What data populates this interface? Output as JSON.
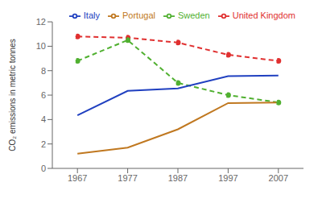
{
  "chart_data": {
    "type": "line",
    "ylabel": "CO₂ emissions in metric tonnes",
    "x": [
      1967,
      1977,
      1987,
      1997,
      2007
    ],
    "series": [
      {
        "name": "United Kingdom",
        "color": "#e03030",
        "line_style": "dashed",
        "marker": "point",
        "values": [
          10.8,
          10.7,
          10.3,
          9.3,
          8.8
        ]
      },
      {
        "name": "Sweden",
        "color": "#50b030",
        "line_style": "dashed",
        "marker": "point",
        "values": [
          8.8,
          10.5,
          7.0,
          6.0,
          5.4
        ]
      },
      {
        "name": "Italy",
        "color": "#2040c0",
        "line_style": "solid",
        "marker": "none",
        "values": [
          4.35,
          6.35,
          6.55,
          7.55,
          7.6
        ]
      },
      {
        "name": "Portugal",
        "color": "#c07820",
        "line_style": "solid",
        "marker": "none",
        "values": [
          1.2,
          1.7,
          3.2,
          5.35,
          5.4
        ]
      }
    ],
    "xlim": [
      1962,
      2012
    ],
    "xticks": [
      1967,
      1977,
      1987,
      1997,
      2007
    ],
    "ylim": [
      0,
      12
    ],
    "yticks": [
      0,
      2,
      4,
      6,
      8,
      10,
      12
    ],
    "legend": "upper right",
    "grid": false
  }
}
